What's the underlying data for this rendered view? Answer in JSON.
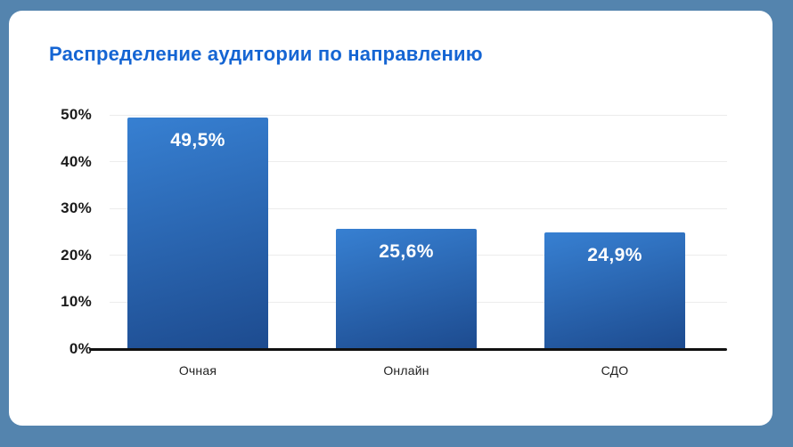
{
  "title": {
    "text": "Распределение аудитории по направлению",
    "color": "#1565D3"
  },
  "colors": {
    "page_background": "#5484AE",
    "card_background": "#FFFFFF",
    "bar_gradient_top": "#3780D2",
    "bar_gradient_bottom": "#1D4B8F",
    "gridline": "#ECECEC",
    "axis_line": "#111111",
    "tick_text": "#1B1B1B",
    "xlabel_text": "#222222",
    "value_label_text": "#FFFFFF"
  },
  "chart_data": {
    "type": "bar",
    "title": "Распределение аудитории по направлению",
    "categories": [
      "Очная",
      "Онлайн",
      "СДО"
    ],
    "values": [
      49.5,
      25.6,
      24.9
    ],
    "value_labels": [
      "49,5%",
      "25,6%",
      "24,9%"
    ],
    "xlabel": "",
    "ylabel": "",
    "ylim": [
      0,
      50
    ],
    "yticks": [
      0,
      10,
      20,
      30,
      40,
      50
    ],
    "ytick_labels": [
      "0%",
      "10%",
      "20%",
      "30%",
      "40%",
      "50%"
    ],
    "grid": true,
    "legend": false,
    "unit": "%"
  }
}
